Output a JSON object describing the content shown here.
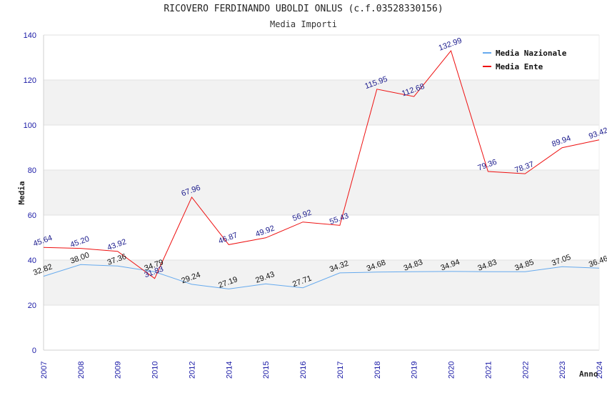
{
  "chart_data": {
    "type": "line",
    "title": "RICOVERO FERDINANDO UBOLDI ONLUS (c.f.03528330156)",
    "subtitle": "Media Importi",
    "xlabel": "Anno",
    "ylabel": "Media",
    "ylim": [
      0,
      140
    ],
    "yticks": [
      0,
      20,
      40,
      60,
      80,
      100,
      120,
      140
    ],
    "categories": [
      "2007",
      "2008",
      "2009",
      "2010",
      "2012",
      "2014",
      "2015",
      "2016",
      "2017",
      "2018",
      "2019",
      "2020",
      "2021",
      "2022",
      "2023",
      "2024"
    ],
    "series": [
      {
        "name": "Media Nazionale",
        "color": "#66aaee",
        "values": [
          32.82,
          38.0,
          37.36,
          34.79,
          29.24,
          27.19,
          29.43,
          27.71,
          34.32,
          34.68,
          34.83,
          34.94,
          34.83,
          34.85,
          37.05,
          36.46
        ],
        "labels": [
          "32.82",
          "38.00",
          "37.36",
          "34.79",
          "29.24",
          "27.19",
          "29.43",
          "27.71",
          "34.32",
          "34.68",
          "34.83",
          "34.94",
          "34.83",
          "34.85",
          "37.05",
          "36.46"
        ]
      },
      {
        "name": "Media Ente",
        "color": "#ee1111",
        "values": [
          45.64,
          45.2,
          43.92,
          31.83,
          67.96,
          46.87,
          49.92,
          56.92,
          55.43,
          115.95,
          112.68,
          132.99,
          79.36,
          78.37,
          89.94,
          93.42
        ],
        "labels": [
          "45.64",
          "45.20",
          "43.92",
          "31.83",
          "67.96",
          "46.87",
          "49.92",
          "56.92",
          "55.43",
          "115.95",
          "112.68",
          "132.99",
          "79.36",
          "78.37",
          "89.94",
          "93.42"
        ]
      }
    ],
    "grid": "horizontal bands",
    "legend_position": "top-right"
  }
}
